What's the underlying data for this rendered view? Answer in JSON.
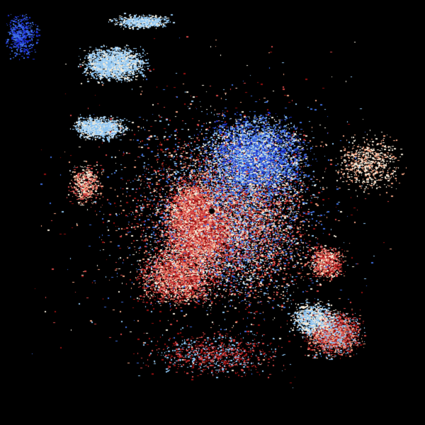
{
  "image": {
    "background": "#000000",
    "palette": {
      "strong_toward": "#1c2fd0",
      "toward": "#3f6fe0",
      "light_toward": "#8ec4f0",
      "near_zero": "#f3ead8",
      "light_away": "#f0a080",
      "away": "#d84848",
      "strong_away": "#9a1010"
    }
  }
}
